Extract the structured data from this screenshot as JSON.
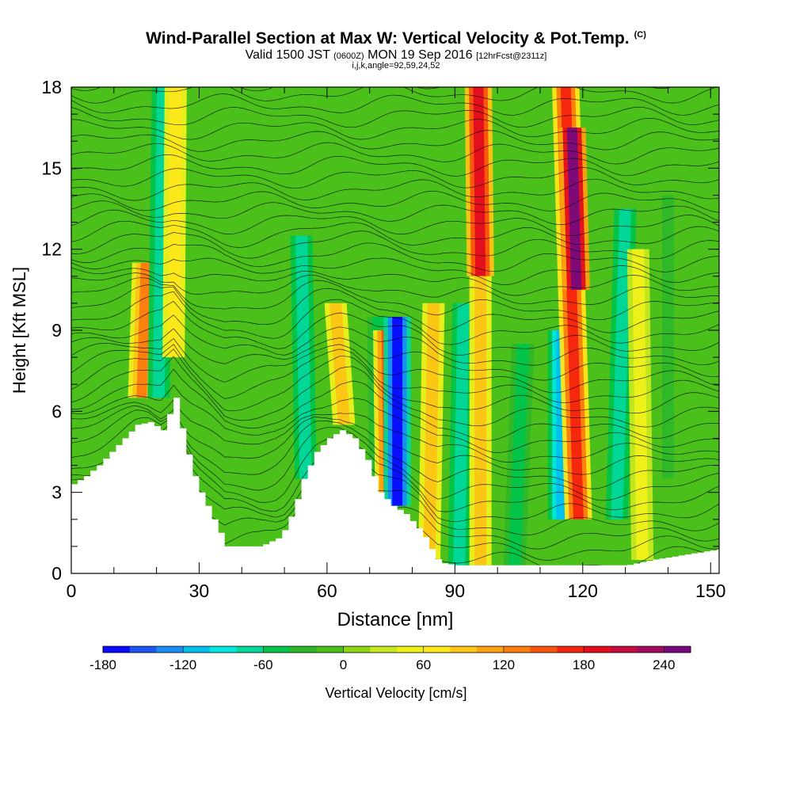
{
  "header": {
    "title": "Wind-Parallel Section at Max W: Vertical Velocity & Pot.Temp.",
    "title_mark": "(C)",
    "valid_prefix": "Valid 1500 JST",
    "valid_utc": "(0600Z)",
    "valid_date": "MON 19 Sep 2016",
    "forecast": "[12hrFcst@2311z]",
    "indices": "i,j,k,angle=92,59,24,52"
  },
  "chart_data": {
    "type": "heatmap",
    "xlabel": "Distance [nm]",
    "ylabel": "Height [Kft MSL]",
    "xlim": [
      0,
      152
    ],
    "ylim": [
      0,
      18
    ],
    "x_ticks": [
      0,
      30,
      60,
      90,
      120,
      150
    ],
    "y_ticks": [
      0,
      3,
      6,
      9,
      12,
      15,
      18
    ],
    "x_tick_labels": [
      "0",
      "30",
      "60",
      "90",
      "120",
      "150"
    ],
    "y_tick_labels": [
      "0",
      "3",
      "6",
      "9",
      "12",
      "15",
      "18"
    ],
    "terrain": {
      "distance_nm": [
        0,
        3,
        6,
        9,
        12,
        15,
        18,
        21,
        24,
        26,
        28,
        30,
        33,
        36,
        40,
        44,
        48,
        50,
        52,
        54,
        57,
        60,
        63,
        66,
        69,
        72,
        75,
        78,
        82,
        84,
        86,
        90,
        95,
        100,
        105,
        110,
        115,
        120,
        126,
        130,
        136,
        140,
        152
      ],
      "height_kft": [
        3.3,
        3.6,
        4.0,
        4.5,
        5.0,
        5.5,
        5.6,
        5.3,
        6.5,
        5.0,
        3.8,
        3.0,
        2.0,
        1.0,
        1.0,
        1.0,
        1.3,
        1.7,
        2.5,
        3.5,
        4.5,
        5.0,
        5.3,
        5.0,
        4.2,
        3.0,
        2.5,
        2.2,
        1.5,
        0.9,
        0.4,
        0.3,
        0.3,
        0.3,
        0.3,
        0.3,
        0.3,
        0.3,
        0.3,
        0.3,
        0.5,
        0.6,
        0.9
      ]
    },
    "velocity_bands": [
      {
        "x_bottom": 16.5,
        "x_top": 17.5,
        "y_min": 6.5,
        "y_max": 11.5,
        "w": 130
      },
      {
        "x_bottom": 20.5,
        "x_top": 21.5,
        "y_min": 6.5,
        "y_max": 18.0,
        "w": -80
      },
      {
        "x_bottom": 24.0,
        "x_top": 24.5,
        "y_min": 8.0,
        "y_max": 18.0,
        "w": 70
      },
      {
        "x_bottom": 55.0,
        "x_top": 54.0,
        "y_min": 3.5,
        "y_max": 12.5,
        "w": -80
      },
      {
        "x_bottom": 64.0,
        "x_top": 62.0,
        "y_min": 5.5,
        "y_max": 10.0,
        "w": 90
      },
      {
        "x_bottom": 72.5,
        "x_top": 72.0,
        "y_min": 2.5,
        "y_max": 9.5,
        "w": -50
      },
      {
        "x_bottom": 74.5,
        "x_top": 74.0,
        "y_min": 2.5,
        "y_max": 9.0,
        "w": 140
      },
      {
        "x_bottom": 76.5,
        "x_top": 76.5,
        "y_min": 2.5,
        "y_max": 9.5,
        "w": -170
      },
      {
        "x_bottom": 84.0,
        "x_top": 85.0,
        "y_min": 0.5,
        "y_max": 10.0,
        "w": 90
      },
      {
        "x_bottom": 91.0,
        "x_top": 92.0,
        "y_min": 0.3,
        "y_max": 10.0,
        "w": -80
      },
      {
        "x_bottom": 96.0,
        "x_top": 95.5,
        "y_min": 11.0,
        "y_max": 18.0,
        "w": 190
      },
      {
        "x_bottom": 96.0,
        "x_top": 96.0,
        "y_min": 0.3,
        "y_max": 11.0,
        "w": 80
      },
      {
        "x_bottom": 104.0,
        "x_top": 106.0,
        "y_min": 0.3,
        "y_max": 8.5,
        "w": -60
      },
      {
        "x_bottom": 115.0,
        "x_top": 115.0,
        "y_min": 2.0,
        "y_max": 9.0,
        "w": -120
      },
      {
        "x_bottom": 119.0,
        "x_top": 116.0,
        "y_min": 2.0,
        "y_max": 18.0,
        "w": 170
      },
      {
        "x_bottom": 118.5,
        "x_top": 117.5,
        "y_min": 10.5,
        "y_max": 16.5,
        "w": 260
      },
      {
        "x_bottom": 128.0,
        "x_top": 130.0,
        "y_min": 2.0,
        "y_max": 13.5,
        "w": -80
      },
      {
        "x_bottom": 134.0,
        "x_top": 133.0,
        "y_min": 0.5,
        "y_max": 12.0,
        "w": 40
      },
      {
        "x_bottom": 140.0,
        "x_top": 140.0,
        "y_min": 3.5,
        "y_max": 14.0,
        "w": -30
      }
    ],
    "colorbar": {
      "label": "Vertical Velocity [cm/s]",
      "tick_values": [
        -180,
        -120,
        -60,
        0,
        60,
        120,
        180,
        240
      ],
      "tick_labels": [
        "-180",
        "-120",
        "-60",
        "0",
        "60",
        "120",
        "180",
        "240"
      ],
      "bin_start": -180,
      "bin_width": 20,
      "colors": [
        "#0a0aff",
        "#1e55f0",
        "#1a8cf5",
        "#00c0f0",
        "#00e6e0",
        "#00d89c",
        "#00c44a",
        "#2db82a",
        "#4cc01a",
        "#8cd614",
        "#c8e81e",
        "#f0f019",
        "#fde619",
        "#fcc414",
        "#fca110",
        "#fc7c0e",
        "#f9520c",
        "#f4230f",
        "#e30c1e",
        "#c40a3e",
        "#a00a5e",
        "#780a7d"
      ]
    },
    "background_color": "#4cc01a"
  }
}
